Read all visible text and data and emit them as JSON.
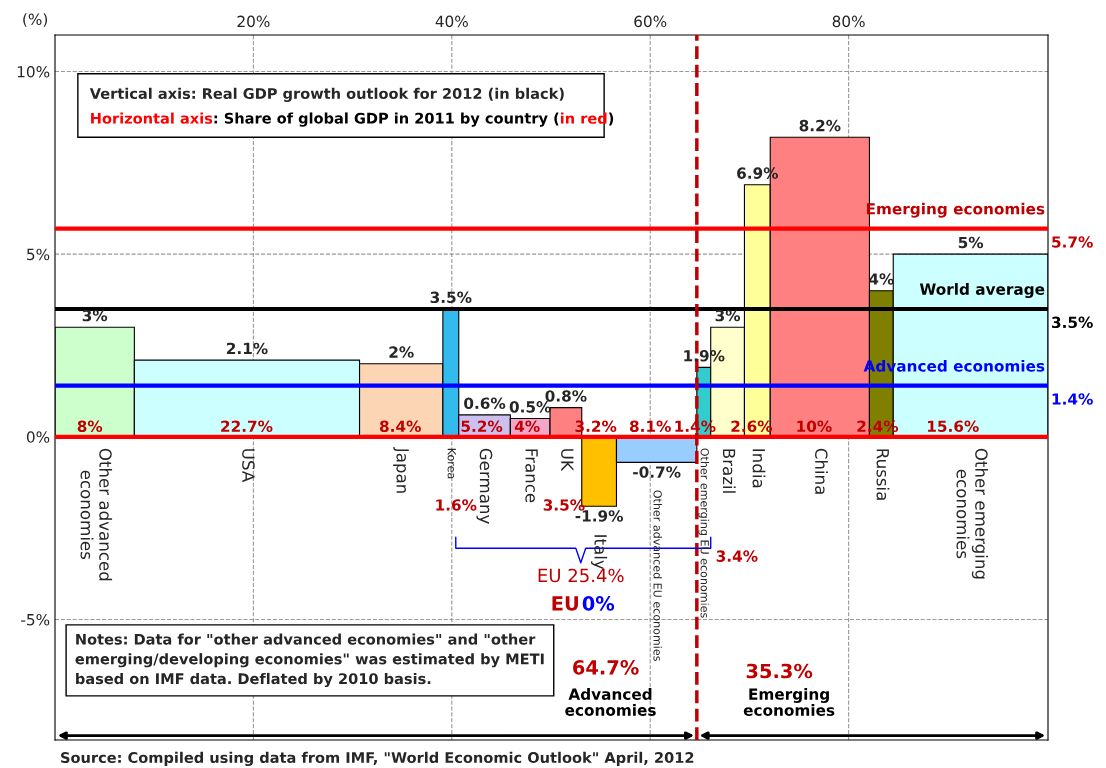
{
  "chart_data": {
    "type": "histogram",
    "categories": [
      "Other advanced\neconomies",
      "USA",
      "Japan",
      "Korea",
      "Germany",
      "France",
      "UK",
      "Italy",
      "Other advanced EU economies",
      "Other emerging EU economies",
      "Brazil",
      "India",
      "China",
      "Russia",
      "Other emerging\neconomies"
    ],
    "bins": [
      0,
      8,
      30.7,
      39.1,
      40.7,
      45.9,
      49.9,
      53.1,
      56.6,
      64.7,
      66.1,
      69.5,
      72.1,
      82.1,
      84.5,
      100.1
    ],
    "values": [
      3,
      2.1,
      2,
      3.5,
      0.6,
      0.5,
      0.8,
      -1.9,
      -0.7,
      1.9,
      3,
      6.9,
      8.2,
      4,
      5
    ],
    "colors": [
      "#ccffcc",
      "#ccffff",
      "#fcd5b4",
      "#33bbee",
      "#ccc0f0",
      "#f4a6c8",
      "#ff8080",
      "#ffc000",
      "#99ccff",
      "#33cccc",
      "#ffffcc",
      "#ffff99",
      "#ff8080",
      "#808000",
      "#ccffff"
    ],
    "value_labels": [
      "3%",
      "2.1%",
      "2%",
      "3.5%",
      "0.6%",
      "0.5%",
      "0.8%",
      "-1.9%",
      "-0.7%",
      "1.9%",
      "3%",
      "6.9%",
      "8.2%",
      "4%",
      "5%"
    ],
    "xlim": [
      0,
      100.1
    ],
    "xticks": [
      {
        "value": 20,
        "label": "20%"
      },
      {
        "value": 40,
        "label": "40%"
      },
      {
        "value": 60,
        "label": "60%"
      },
      {
        "value": 80,
        "label": "80%"
      }
    ],
    "ylim": [
      -8.3,
      11
    ],
    "yticks": [
      {
        "value": -5,
        "label": "-5%"
      },
      {
        "value": 0,
        "label": "0%"
      },
      {
        "value": 5,
        "label": "5%"
      },
      {
        "value": 10,
        "label": "10%"
      }
    ],
    "ylabel": "(%)",
    "grid": true,
    "ref_lines": [
      {
        "axis": "y",
        "value": 0,
        "color": "#ff0000"
      },
      {
        "axis": "y",
        "value": 5.7,
        "label": "Emerging economies",
        "color": "#ff0000"
      },
      {
        "axis": "y",
        "value": 3.5,
        "label": "World average",
        "color": "#000000"
      },
      {
        "axis": "y",
        "value": 1.4,
        "label": "Advanced economies",
        "color": "#0000ff"
      },
      {
        "axis": "x",
        "value": 64.7,
        "color": "#c00000",
        "line_style": "dashed"
      }
    ],
    "annotations": [
      "Vertical axis: Real GDP growth outlook for 2012 (in black)",
      "Horizontal axis",
      ": Share of global GDP in 2011 by country (",
      "in red",
      ")",
      "Notes: Data for \"other advanced economies\" and \"other\nemerging/developing economies\" was estimated by METI\nbased on IMF data. Deflated by 2010 basis.",
      "Source: Compiled using data from IMF, \"World Economic Outlook\" April, 2012",
      "1.6%",
      "3.5%",
      "3.4%",
      "EU 25.4%",
      "EU",
      "0%",
      "64.7%",
      "Advanced\neconomies",
      "35.3%",
      "Emerging\neconomies",
      {
        "text": "8%",
        "x": 3.5,
        "y": 0
      },
      {
        "text": "22.7%",
        "x": 19.3,
        "y": 0
      },
      {
        "text": "8.4%",
        "x": 34.8,
        "y": 0
      },
      {
        "text": "5.2%",
        "x": 43,
        "y": 0
      },
      {
        "text": "4%",
        "x": 47.6,
        "y": 0
      },
      {
        "text": "3.2%",
        "x": 54.5,
        "y": 0
      },
      {
        "text": "8.1%",
        "x": 60,
        "y": 0
      },
      {
        "text": "1.4%",
        "x": 64.5,
        "y": 0
      },
      {
        "text": "2.6%",
        "x": 70.2,
        "y": 0
      },
      {
        "text": "10%",
        "x": 76.5,
        "y": 0
      },
      {
        "text": "2.4%",
        "x": 82.9,
        "y": 0
      },
      {
        "text": "15.6%",
        "x": 90.5,
        "y": 0
      },
      {
        "text": "5.7%",
        "x": 100.1,
        "y": 5.7
      },
      {
        "text": "3.5%",
        "x": 100.1,
        "y": 3.5
      },
      {
        "text": "1.4%",
        "x": 100.1,
        "y": 1.4
      }
    ]
  }
}
